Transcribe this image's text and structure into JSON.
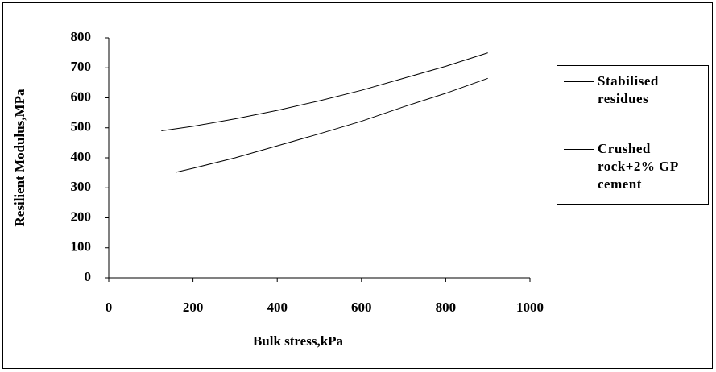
{
  "chart_data": {
    "type": "line",
    "xlabel": "Bulk stress,kPa",
    "ylabel": "Resilient Modulus,MPa",
    "xlim": [
      0,
      1000
    ],
    "xticks": [
      0,
      200,
      400,
      600,
      800,
      1000
    ],
    "ylim": [
      0,
      800
    ],
    "yticks": [
      0,
      100,
      200,
      300,
      400,
      500,
      600,
      700,
      800
    ],
    "legend": "right",
    "series": [
      {
        "name": "Stabilised residues",
        "color": "#000000",
        "x": [
          125,
          200,
          300,
          400,
          500,
          600,
          700,
          800,
          900
        ],
        "values": [
          490,
          505,
          530,
          558,
          590,
          625,
          665,
          705,
          750
        ]
      },
      {
        "name": "Crushed rock+2% GP cement",
        "color": "#000000",
        "x": [
          160,
          200,
          300,
          400,
          500,
          600,
          700,
          800,
          900
        ],
        "values": [
          352,
          365,
          400,
          440,
          480,
          522,
          570,
          615,
          665
        ]
      }
    ]
  }
}
